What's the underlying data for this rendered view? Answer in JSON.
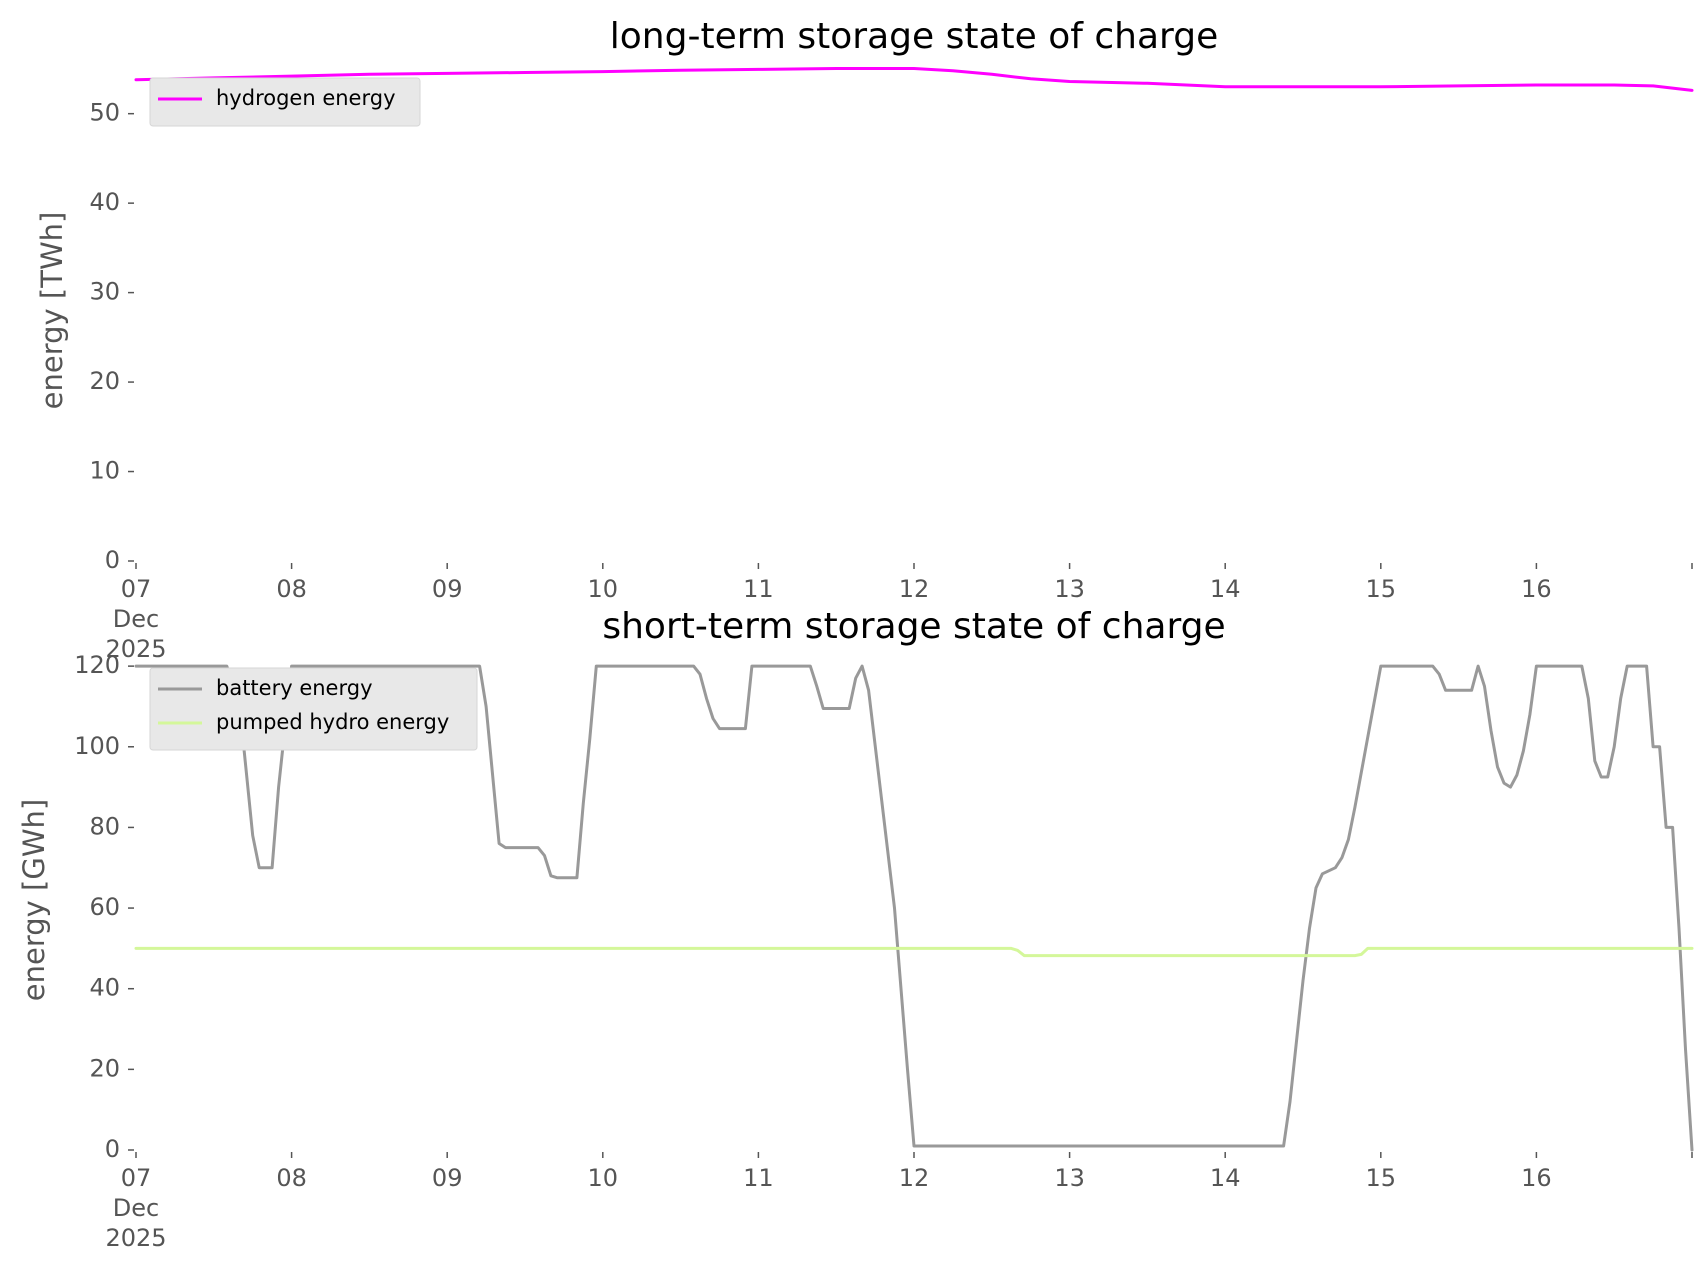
{
  "chart_data": [
    {
      "type": "line",
      "title": "long-term storage state of charge",
      "ylabel": "energy [TWh]",
      "xlabel": "",
      "ylim": [
        0,
        56
      ],
      "xlim": [
        "2025-12-07",
        "2025-12-17"
      ],
      "yticks": [
        "0",
        "10",
        "20",
        "30",
        "40",
        "50"
      ],
      "xticks": [
        {
          "label": "07",
          "sub": [
            "Dec",
            "2025"
          ]
        },
        {
          "label": "08"
        },
        {
          "label": "09"
        },
        {
          "label": "10"
        },
        {
          "label": "11"
        },
        {
          "label": "12"
        },
        {
          "label": "13"
        },
        {
          "label": "14"
        },
        {
          "label": "15"
        },
        {
          "label": "16"
        }
      ],
      "grid": false,
      "legend": "top-left",
      "series": [
        {
          "name": "hydrogen energy",
          "color": "#ff00ff",
          "points": [
            [
              "2025-12-07 00:00",
              53.8
            ],
            [
              "2025-12-07 12:00",
              54.0
            ],
            [
              "2025-12-08 00:00",
              54.2
            ],
            [
              "2025-12-08 12:00",
              54.4
            ],
            [
              "2025-12-09 00:00",
              54.5
            ],
            [
              "2025-12-09 12:00",
              54.6
            ],
            [
              "2025-12-10 00:00",
              54.7
            ],
            [
              "2025-12-10 12:00",
              54.85
            ],
            [
              "2025-12-11 00:00",
              54.95
            ],
            [
              "2025-12-11 12:00",
              55.05
            ],
            [
              "2025-12-12 00:00",
              55.05
            ],
            [
              "2025-12-12 06:00",
              54.8
            ],
            [
              "2025-12-12 12:00",
              54.4
            ],
            [
              "2025-12-12 18:00",
              53.9
            ],
            [
              "2025-12-13 00:00",
              53.6
            ],
            [
              "2025-12-13 12:00",
              53.4
            ],
            [
              "2025-12-14 00:00",
              53.0
            ],
            [
              "2025-12-14 12:00",
              53.0
            ],
            [
              "2025-12-15 00:00",
              53.0
            ],
            [
              "2025-12-15 12:00",
              53.1
            ],
            [
              "2025-12-16 00:00",
              53.2
            ],
            [
              "2025-12-16 12:00",
              53.2
            ],
            [
              "2025-12-16 18:00",
              53.1
            ],
            [
              "2025-12-17 00:00",
              52.6
            ]
          ]
        }
      ]
    },
    {
      "type": "line",
      "title": "short-term storage state of charge",
      "ylabel": "energy [GWh]",
      "xlabel": "",
      "ylim": [
        0,
        124
      ],
      "xlim": [
        "2025-12-07",
        "2025-12-17"
      ],
      "yticks": [
        "0",
        "20",
        "40",
        "60",
        "80",
        "100",
        "120"
      ],
      "xticks": [
        {
          "label": "07",
          "sub": [
            "Dec",
            "2025"
          ]
        },
        {
          "label": "08"
        },
        {
          "label": "09"
        },
        {
          "label": "10"
        },
        {
          "label": "11"
        },
        {
          "label": "12"
        },
        {
          "label": "13"
        },
        {
          "label": "14"
        },
        {
          "label": "15"
        },
        {
          "label": "16"
        }
      ],
      "grid": false,
      "legend": "top-left",
      "series": [
        {
          "name": "battery energy",
          "color": "#999999",
          "points": [
            [
              "2025-12-07 00:00",
              120
            ],
            [
              "2025-12-07 14:00",
              120
            ],
            [
              "2025-12-07 16:00",
              110
            ],
            [
              "2025-12-07 18:00",
              78
            ],
            [
              "2025-12-07 19:00",
              70
            ],
            [
              "2025-12-07 21:00",
              70
            ],
            [
              "2025-12-07 22:00",
              90
            ],
            [
              "2025-12-08 00:00",
              120
            ],
            [
              "2025-12-09 05:00",
              120
            ],
            [
              "2025-12-09 06:00",
              110
            ],
            [
              "2025-12-09 08:00",
              76
            ],
            [
              "2025-12-09 09:00",
              75
            ],
            [
              "2025-12-09 14:00",
              75
            ],
            [
              "2025-12-09 15:00",
              73
            ],
            [
              "2025-12-09 16:00",
              68
            ],
            [
              "2025-12-09 17:00",
              67.5
            ],
            [
              "2025-12-09 20:00",
              67.5
            ],
            [
              "2025-12-09 21:00",
              86
            ],
            [
              "2025-12-09 22:00",
              102
            ],
            [
              "2025-12-09 23:00",
              120
            ],
            [
              "2025-12-10 14:00",
              120
            ],
            [
              "2025-12-10 15:00",
              118
            ],
            [
              "2025-12-10 16:00",
              112
            ],
            [
              "2025-12-10 17:00",
              107
            ],
            [
              "2025-12-10 18:00",
              104.5
            ],
            [
              "2025-12-10 22:00",
              104.5
            ],
            [
              "2025-12-10 23:00",
              120
            ],
            [
              "2025-12-11 08:00",
              120
            ],
            [
              "2025-12-11 09:00",
              115
            ],
            [
              "2025-12-11 10:00",
              109.5
            ],
            [
              "2025-12-11 14:00",
              109.5
            ],
            [
              "2025-12-11 15:00",
              117
            ],
            [
              "2025-12-11 16:00",
              120
            ],
            [
              "2025-12-11 17:00",
              114
            ],
            [
              "2025-12-11 21:00",
              60
            ],
            [
              "2025-12-11 23:00",
              20
            ],
            [
              "2025-12-12 00:00",
              1
            ],
            [
              "2025-12-14 09:00",
              1
            ],
            [
              "2025-12-14 10:00",
              12
            ],
            [
              "2025-12-14 12:00",
              42
            ],
            [
              "2025-12-14 13:00",
              55
            ],
            [
              "2025-12-14 14:00",
              65
            ],
            [
              "2025-12-14 15:00",
              68.5
            ],
            [
              "2025-12-14 17:00",
              70
            ],
            [
              "2025-12-14 18:00",
              72.5
            ],
            [
              "2025-12-14 19:00",
              77
            ],
            [
              "2025-12-14 20:00",
              85
            ],
            [
              "2025-12-15 00:00",
              120
            ],
            [
              "2025-12-15 08:00",
              120
            ],
            [
              "2025-12-15 09:00",
              118
            ],
            [
              "2025-12-15 10:00",
              114
            ],
            [
              "2025-12-15 14:00",
              114
            ],
            [
              "2025-12-15 15:00",
              120
            ],
            [
              "2025-12-15 16:00",
              115
            ],
            [
              "2025-12-15 17:00",
              104
            ],
            [
              "2025-12-15 18:00",
              95
            ],
            [
              "2025-12-15 19:00",
              91
            ],
            [
              "2025-12-15 20:00",
              90
            ],
            [
              "2025-12-15 21:00",
              93
            ],
            [
              "2025-12-15 22:00",
              99
            ],
            [
              "2025-12-15 23:00",
              108
            ],
            [
              "2025-12-16 00:00",
              120
            ],
            [
              "2025-12-16 07:00",
              120
            ],
            [
              "2025-12-16 08:00",
              112
            ],
            [
              "2025-12-16 09:00",
              96.5
            ],
            [
              "2025-12-16 10:00",
              92.5
            ],
            [
              "2025-12-16 11:00",
              92.5
            ],
            [
              "2025-12-16 12:00",
              100
            ],
            [
              "2025-12-16 13:00",
              112
            ],
            [
              "2025-12-16 14:00",
              120
            ],
            [
              "2025-12-16 17:00",
              120
            ],
            [
              "2025-12-16 18:00",
              100
            ],
            [
              "2025-12-16 19:00",
              100
            ],
            [
              "2025-12-16 20:00",
              80
            ],
            [
              "2025-12-16 21:00",
              80
            ],
            [
              "2025-12-16 22:00",
              55
            ],
            [
              "2025-12-16 23:00",
              25
            ],
            [
              "2025-12-17 00:00",
              0
            ]
          ]
        },
        {
          "name": "pumped hydro energy",
          "color": "#d4f79a",
          "points": [
            [
              "2025-12-07 00:00",
              50
            ],
            [
              "2025-12-12 15:00",
              50
            ],
            [
              "2025-12-12 16:00",
              49.5
            ],
            [
              "2025-12-12 17:00",
              48.2
            ],
            [
              "2025-12-14 20:00",
              48.2
            ],
            [
              "2025-12-14 21:00",
              48.5
            ],
            [
              "2025-12-14 22:00",
              50
            ],
            [
              "2025-12-17 00:00",
              50
            ]
          ]
        }
      ]
    }
  ]
}
